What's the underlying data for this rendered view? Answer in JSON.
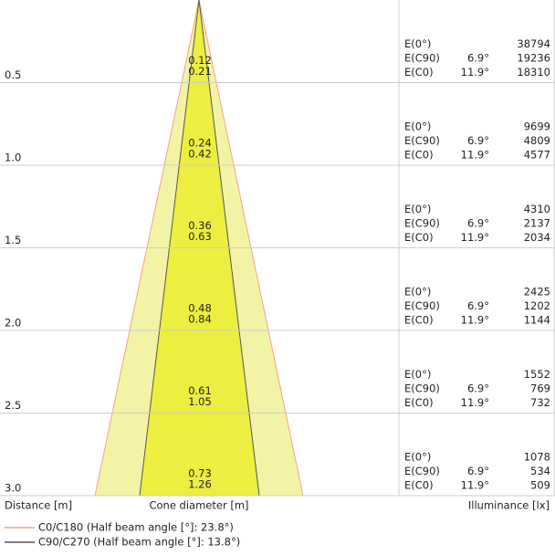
{
  "axis_labels": {
    "distance": "Distance [m]",
    "cone_diameter": "Cone diameter [m]",
    "illuminance": "Illuminance [lx]"
  },
  "legend": [
    "C0/C180 (Half beam angle [°]: 23.8°)",
    "C90/C270 (Half beam angle [°]: 13.8°)"
  ],
  "rows": [
    {
      "distance": "0.5",
      "diameters": [
        "0.12",
        "0.21"
      ],
      "illuminance": [
        {
          "label": "E(0°)",
          "value": "38794"
        },
        {
          "label": "E(C90)",
          "angle": "6.9°",
          "value": "19236"
        },
        {
          "label": "E(C0)",
          "angle": "11.9°",
          "value": "18310"
        }
      ]
    },
    {
      "distance": "1.0",
      "diameters": [
        "0.24",
        "0.42"
      ],
      "illuminance": [
        {
          "label": "E(0°)",
          "value": "9699"
        },
        {
          "label": "E(C90)",
          "angle": "6.9°",
          "value": "4809"
        },
        {
          "label": "E(C0)",
          "angle": "11.9°",
          "value": "4577"
        }
      ]
    },
    {
      "distance": "1.5",
      "diameters": [
        "0.36",
        "0.63"
      ],
      "illuminance": [
        {
          "label": "E(0°)",
          "value": "4310"
        },
        {
          "label": "E(C90)",
          "angle": "6.9°",
          "value": "2137"
        },
        {
          "label": "E(C0)",
          "angle": "11.9°",
          "value": "2034"
        }
      ]
    },
    {
      "distance": "2.0",
      "diameters": [
        "0.48",
        "0.84"
      ],
      "illuminance": [
        {
          "label": "E(0°)",
          "value": "2425"
        },
        {
          "label": "E(C90)",
          "angle": "6.9°",
          "value": "1202"
        },
        {
          "label": "E(C0)",
          "angle": "11.9°",
          "value": "1144"
        }
      ]
    },
    {
      "distance": "2.5",
      "diameters": [
        "0.61",
        "1.05"
      ],
      "illuminance": [
        {
          "label": "E(0°)",
          "value": "1552"
        },
        {
          "label": "E(C90)",
          "angle": "6.9°",
          "value": "769"
        },
        {
          "label": "E(C0)",
          "angle": "11.9°",
          "value": "732"
        }
      ]
    },
    {
      "distance": "3.0",
      "diameters": [
        "0.73",
        "1.26"
      ],
      "illuminance": [
        {
          "label": "E(0°)",
          "value": "1078"
        },
        {
          "label": "E(C90)",
          "angle": "6.9°",
          "value": "534"
        },
        {
          "label": "E(C0)",
          "angle": "11.9°",
          "value": "509"
        }
      ]
    }
  ]
}
